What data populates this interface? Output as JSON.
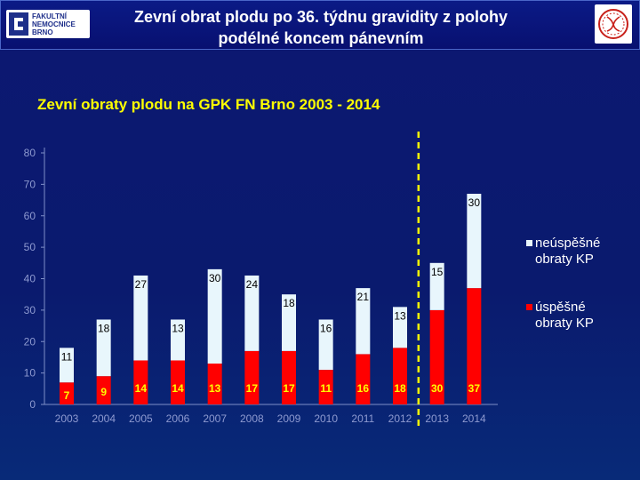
{
  "header": {
    "title_line1": "Zevní obrat plodu po 36. týdnu gravidity z polohy",
    "title_line2": "podélné koncem pánevním",
    "logo_left_lines": [
      "FAKULTNÍ",
      "NEMOCNICE",
      "BRNO"
    ],
    "logo_right_icon": "hospital-emblem-icon"
  },
  "chart_data": {
    "type": "bar",
    "stacked": true,
    "title": "Zevní obraty plodu na GPK FN Brno 2003 - 2014",
    "categories": [
      "2003",
      "2004",
      "2005",
      "2006",
      "2007",
      "2008",
      "2009",
      "2010",
      "2011",
      "2012",
      "2013",
      "2014"
    ],
    "series": [
      {
        "name": "úspěšné obraty KP",
        "color": "#ff0000",
        "values": [
          7,
          9,
          14,
          14,
          13,
          17,
          17,
          11,
          16,
          18,
          30,
          37
        ]
      },
      {
        "name": "neúspěšné obraty KP",
        "color": "#e8f6fc",
        "values": [
          11,
          18,
          27,
          13,
          30,
          24,
          18,
          16,
          21,
          13,
          15,
          30
        ]
      }
    ],
    "ylim": [
      0,
      80
    ],
    "yticks": [
      0,
      10,
      20,
      30,
      40,
      50,
      60,
      70,
      80
    ],
    "grid": false,
    "legend_position": "right",
    "marker_line": {
      "between": [
        "2012",
        "2013"
      ],
      "color": "#ffff00",
      "style": "dashed"
    },
    "label_color_lower": "#ffff00",
    "label_color_upper": "#ffffff"
  }
}
